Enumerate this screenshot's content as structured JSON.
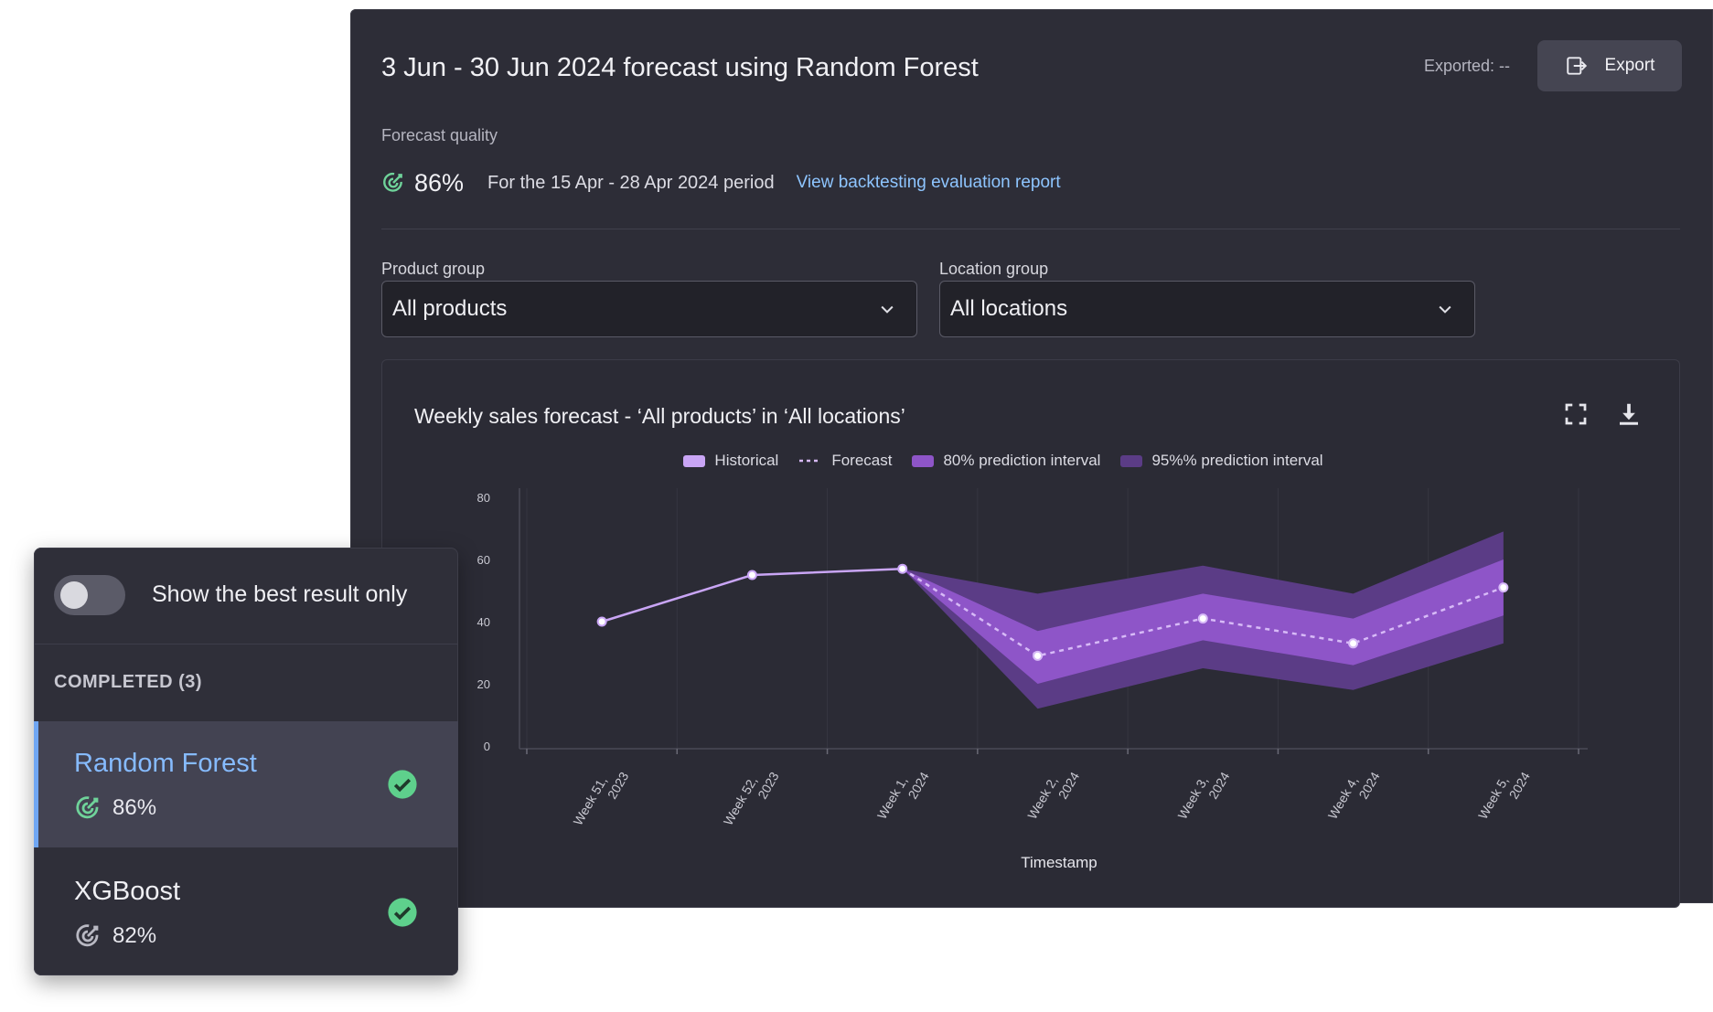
{
  "header": {
    "title": "3 Jun - 30 Jun 2024 forecast using Random Forest",
    "exported": "Exported: --",
    "export_label": "Export"
  },
  "quality": {
    "label": "Forecast quality",
    "percent": "86%",
    "period": "For the 15 Apr - 28 Apr 2024 period",
    "link": "View backtesting evaluation report"
  },
  "filters": {
    "product_label": "Product group",
    "product_value": "All products",
    "location_label": "Location group",
    "location_value": "All locations"
  },
  "chart": {
    "title": "Weekly sales forecast  -  ‘All products’ in ‘All locations’",
    "icons": [
      "fullscreen-icon",
      "download-icon"
    ]
  },
  "chart_data": {
    "type": "line",
    "title": "Weekly sales forecast  -  ‘All products’ in ‘All locations’",
    "xlabel": "Timestamp",
    "ylabel": "",
    "ylim": [
      0,
      80
    ],
    "yticks": [
      0,
      20,
      40,
      60,
      80
    ],
    "categories": [
      "Week 51, 2023",
      "Week 52, 2023",
      "Week 1, 2024",
      "Week 2, 2024",
      "Week 3, 2024",
      "Week 4, 2024",
      "Week 5, 2024"
    ],
    "legend": [
      "Historical",
      "Forecast",
      "80% prediction interval",
      "95%% prediction interval"
    ],
    "series": [
      {
        "name": "Historical",
        "x": [
          0.5,
          1.5,
          2.5
        ],
        "values": [
          40,
          55,
          57
        ]
      },
      {
        "name": "Forecast",
        "x": [
          2.5,
          3.4,
          4.5,
          5.5,
          6.5
        ],
        "values": [
          57,
          29,
          41,
          33,
          51
        ]
      },
      {
        "name": "80% prediction interval",
        "x": [
          2.5,
          3.4,
          4.5,
          5.5,
          6.5
        ],
        "lower": [
          57,
          20,
          34,
          26,
          42
        ],
        "upper": [
          57,
          37,
          49,
          41,
          60
        ]
      },
      {
        "name": "95%% prediction interval",
        "x": [
          2.5,
          3.4,
          4.5,
          5.5,
          6.5
        ],
        "lower": [
          57,
          12,
          25,
          18,
          33
        ],
        "upper": [
          57,
          49,
          58,
          49,
          69
        ]
      }
    ],
    "colors": {
      "historical": "#c9a5f5",
      "forecast": "#d7baf7",
      "interval80": "#8e55c8",
      "interval95": "#5b3c86"
    },
    "grid": true,
    "legend_position": "top"
  },
  "side_panel": {
    "toggle_label": "Show the best result only",
    "section_label": "COMPLETED (3)",
    "results": [
      {
        "name": "Random Forest",
        "score": "86%"
      },
      {
        "name": "XGBoost",
        "score": "82%"
      }
    ]
  }
}
